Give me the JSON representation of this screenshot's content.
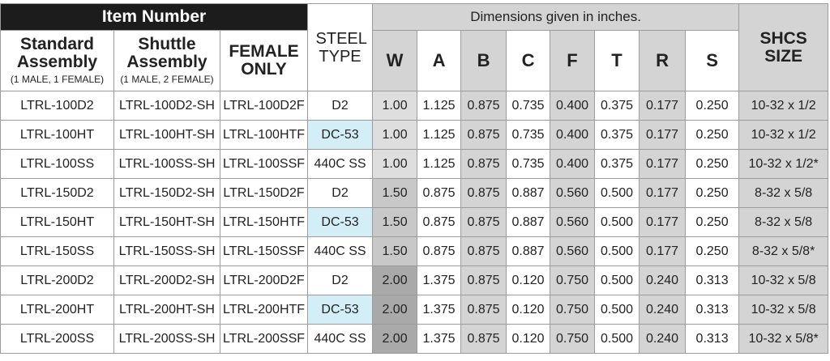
{
  "header": {
    "item_number": "Item Number",
    "dimensions_note": "Dimensions given in inches.",
    "standard_assembly": "Standard Assembly",
    "standard_sub": "(1 MALE, 1 FEMALE)",
    "shuttle_assembly": "Shuttle Assembly",
    "shuttle_sub": "(1 MALE, 2 FEMALE)",
    "female_only": "FEMALE ONLY",
    "steel_type": "STEEL TYPE",
    "shcs_size": "SHCS SIZE",
    "dims": [
      "W",
      "A",
      "B",
      "C",
      "F",
      "T",
      "R",
      "S"
    ]
  },
  "rows": [
    {
      "standard": "LTRL-100D2",
      "shuttle": "LTRL-100D2-SH",
      "female": "LTRL-100D2F",
      "steel": "D2",
      "W": "1.00",
      "A": "1.125",
      "B": "0.875",
      "C": "0.735",
      "F": "0.400",
      "T": "0.375",
      "R": "0.177",
      "S": "0.250",
      "shcs": "10-32 x 1/2"
    },
    {
      "standard": "LTRL-100HT",
      "shuttle": "LTRL-100HT-SH",
      "female": "LTRL-100HTF",
      "steel": "DC-53",
      "W": "1.00",
      "A": "1.125",
      "B": "0.875",
      "C": "0.735",
      "F": "0.400",
      "T": "0.375",
      "R": "0.177",
      "S": "0.250",
      "shcs": "10-32 x 1/2"
    },
    {
      "standard": "LTRL-100SS",
      "shuttle": "LTRL-100SS-SH",
      "female": "LTRL-100SSF",
      "steel": "440C SS",
      "W": "1.00",
      "A": "1.125",
      "B": "0.875",
      "C": "0.735",
      "F": "0.400",
      "T": "0.375",
      "R": "0.177",
      "S": "0.250",
      "shcs": "10-32 x 1/2*"
    },
    {
      "standard": "LTRL-150D2",
      "shuttle": "LTRL-150D2-SH",
      "female": "LTRL-150D2F",
      "steel": "D2",
      "W": "1.50",
      "A": "0.875",
      "B": "0.875",
      "C": "0.887",
      "F": "0.560",
      "T": "0.500",
      "R": "0.177",
      "S": "0.250",
      "shcs": "8-32 x 5/8"
    },
    {
      "standard": "LTRL-150HT",
      "shuttle": "LTRL-150HT-SH",
      "female": "LTRL-150HTF",
      "steel": "DC-53",
      "W": "1.50",
      "A": "0.875",
      "B": "0.875",
      "C": "0.887",
      "F": "0.560",
      "T": "0.500",
      "R": "0.177",
      "S": "0.250",
      "shcs": "8-32 x 5/8"
    },
    {
      "standard": "LTRL-150SS",
      "shuttle": "LTRL-150SS-SH",
      "female": "LTRL-150SSF",
      "steel": "440C SS",
      "W": "1.50",
      "A": "0.875",
      "B": "0.875",
      "C": "0.887",
      "F": "0.560",
      "T": "0.500",
      "R": "0.177",
      "S": "0.250",
      "shcs": "8-32 x 5/8*"
    },
    {
      "standard": "LTRL-200D2",
      "shuttle": "LTRL-200D2-SH",
      "female": "LTRL-200D2F",
      "steel": "D2",
      "W": "2.00",
      "A": "1.375",
      "B": "0.875",
      "C": "0.120",
      "F": "0.750",
      "T": "0.500",
      "R": "0.240",
      "S": "0.313",
      "shcs": "10-32 x 5/8"
    },
    {
      "standard": "LTRL-200HT",
      "shuttle": "LTRL-200HT-SH",
      "female": "LTRL-200HTF",
      "steel": "DC-53",
      "W": "2.00",
      "A": "1.375",
      "B": "0.875",
      "C": "0.120",
      "F": "0.750",
      "T": "0.500",
      "R": "0.240",
      "S": "0.313",
      "shcs": "10-32 x 5/8"
    },
    {
      "standard": "LTRL-200SS",
      "shuttle": "LTRL-200SS-SH",
      "female": "LTRL-200SSF",
      "steel": "440C SS",
      "W": "2.00",
      "A": "1.375",
      "B": "0.875",
      "C": "0.120",
      "F": "0.750",
      "T": "0.500",
      "R": "0.240",
      "S": "0.313",
      "shcs": "10-32 x 5/8*"
    }
  ],
  "colors": {
    "header_dark": "#1c1c1c",
    "shade_gray": "#d4d4d4",
    "dc53_highlight": "#d3eef6",
    "w_band_light": "#dedede",
    "w_band_mid": "#c8c8c8",
    "w_band_dark": "#a9a9a9"
  }
}
